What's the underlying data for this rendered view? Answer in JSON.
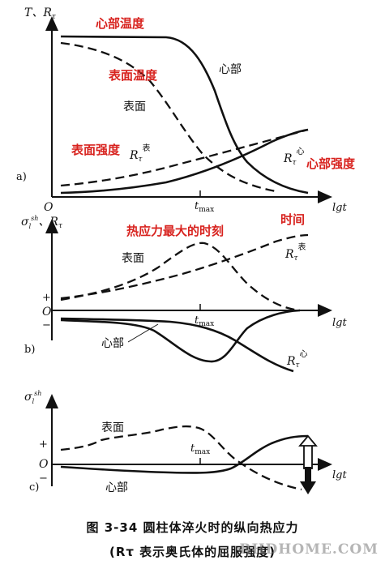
{
  "panel_a": {
    "tag": "a)",
    "y_axis": "T、Rτ",
    "y_axis_main": "T、R",
    "y_axis_sub": "τ",
    "origin": "O",
    "x_tick": "tmax",
    "x_tick_main": "t",
    "x_tick_sub": "max",
    "x_axis": "lgt",
    "curve_core_temp_label": "心部",
    "curve_surface_temp_label": "表面",
    "r_surface_main": "R",
    "r_surface_sub": "τ",
    "r_surface_sup": "表",
    "r_core_main": "R",
    "r_core_sub": "τ",
    "r_core_sup": "心"
  },
  "panel_b": {
    "tag": "b)",
    "y_axis_main": "σ",
    "y_axis_sup": "sh",
    "y_axis_sub": "l",
    "y_axis_rest": "、R",
    "y_axis_rest_sub": "τ",
    "plus": "+",
    "minus": "−",
    "origin": "O",
    "x_tick_main": "t",
    "x_tick_sub": "max",
    "x_axis": "lgt",
    "surface_label": "表面",
    "core_label": "心部",
    "r_surface_main": "R",
    "r_surface_sub": "τ",
    "r_surface_sup": "表",
    "r_core_main": "R",
    "r_core_sub": "τ",
    "r_core_sup": "心"
  },
  "panel_c": {
    "tag": "c)",
    "y_axis_main": "σ",
    "y_axis_sup": "sh",
    "y_axis_sub": "l",
    "plus": "+",
    "minus": "−",
    "origin": "O",
    "x_tick_main": "t",
    "x_tick_sub": "max",
    "x_axis": "lgt",
    "surface_label": "表面",
    "core_label": "心部"
  },
  "annotations": {
    "core_temperature": "心部温度",
    "surface_temperature": "表面温度",
    "surface_strength": "表面强度",
    "core_strength": "心部强度",
    "max_thermal_stress_moment": "热应力最大的时刻",
    "time": "时间"
  },
  "caption": {
    "line1": "图 3-34   圆柱体淬火时的纵向热应力",
    "line2": "(Rτ 表示奥氏体的屈服强度)"
  },
  "watermark": "RHDHOME.COM",
  "colors": {
    "annotation": "#d8231f",
    "ink": "#111111",
    "hollow_arrow": "#ffffff"
  }
}
